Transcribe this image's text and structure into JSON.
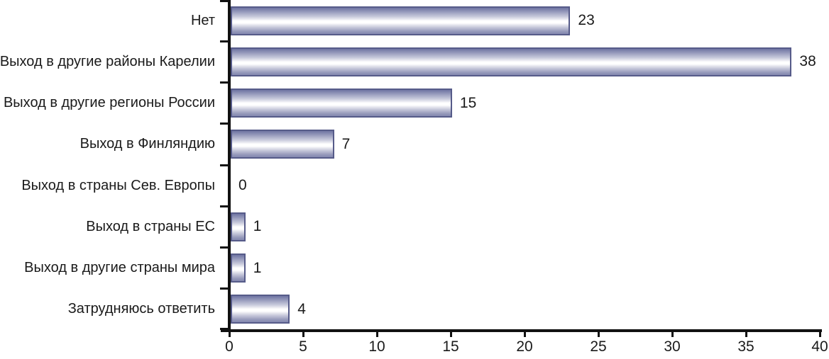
{
  "chart_data": {
    "type": "bar",
    "orientation": "horizontal",
    "title": "",
    "xlabel": "",
    "ylabel": "",
    "categories": [
      "Нет",
      "Выход в другие районы Карелии",
      "Выход в другие регионы России",
      "Выход в Финляндию",
      "Выход в страны Сев. Европы",
      "Выход в страны ЕС",
      "Выход в другие страны мира",
      "Затрудняюсь ответить"
    ],
    "values": [
      23,
      38,
      15,
      7,
      0,
      1,
      1,
      4
    ],
    "data_labels": [
      "23",
      "38",
      "15",
      "7",
      "0",
      "1",
      "1",
      "4"
    ],
    "xlim": [
      0,
      40
    ],
    "x_ticks": [
      0,
      5,
      10,
      15,
      20,
      25,
      30,
      35,
      40
    ],
    "grid": false,
    "legend": false,
    "colors": {
      "bar_top": "#6f74a2",
      "bar_mid": "#ffffff",
      "bar_bottom": "#8488af",
      "bar_border": "#565b89",
      "axis": "#111111",
      "text": "#1a1a1a",
      "background": "#ffffff"
    }
  }
}
